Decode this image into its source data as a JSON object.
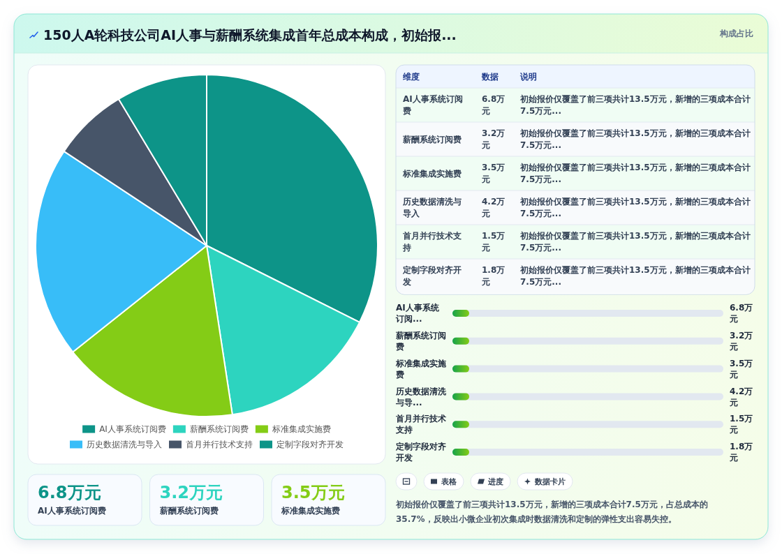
{
  "chart_data": [
    {
      "type": "other",
      "title": "150人A轮科技公司AI人事与薪酬系统集成首年总成本构成，初始报...",
      "subtitle": "构成占比"
    },
    {
      "type": "pie",
      "categories": [
        "AI人事系统订阅费",
        "薪酬系统订阅费",
        "标准集成实施费",
        "历史数据清洗与导入",
        "首月并行技术支持",
        "定制字段对齐开发"
      ],
      "values": [
        32.4,
        15.2,
        16.7,
        20.0,
        7.1,
        8.6
      ],
      "colors": [
        "#0d9488",
        "#2dd4bf",
        "#84cc16",
        "#38bdf8",
        "#475569",
        "#0d9488"
      ],
      "legend": "bottom"
    },
    {
      "type": "other",
      "categories": [
        "AI人事系统订阅费",
        "薪酬系统订阅费",
        "标准集成实施费",
        "历史数据清洗与导入",
        "首月并行技术支持",
        "定制字段对齐开发"
      ],
      "value_labels": [
        "6.8万元",
        "3.2万元",
        "3.5万元",
        "4.2万元",
        "1.5万元",
        "1.8万元"
      ],
      "annotations": [
        "维度",
        "数据",
        "说明",
        "初始报价仅覆盖了前三项共计13.5万元，新增的三项成本合计7.5万元...",
        "初始报价仅覆盖了前三项共计13.5万元，新增的三项成本合计7.5万元...",
        "初始报价仅覆盖了前三项共计13.5万元，新增的三项成本合计7.5万元...",
        "初始报价仅覆盖了前三项共计13.5万元，新增的三项成本合计7.5万元...",
        "初始报价仅覆盖了前三项共计13.5万元，新增的三项成本合计7.5万元...",
        "初始报价仅覆盖了前三项共计13.5万元，新增的三项成本合计7.5万元..."
      ]
    },
    {
      "type": "other",
      "categories": [
        "AI人事系统订阅...",
        "薪酬系统订阅费",
        "标准集成实施费",
        "历史数据清洗与导...",
        "首月并行技术支持",
        "定制字段对齐开发"
      ],
      "value_labels": [
        "6.8万元",
        "3.2万元",
        "3.5万元",
        "4.2万元",
        "1.5万元",
        "1.8万元"
      ]
    },
    {
      "type": "other",
      "categories": [
        "AI人事系统订阅费",
        "薪酬系统订阅费",
        "标准集成实施费"
      ],
      "value_labels": [
        "6.8万元",
        "3.2万元",
        "3.5万元"
      ]
    },
    {
      "type": "other",
      "categories": [
        null,
        "表格",
        "进度",
        "数据卡片"
      ],
      "annotations": [
        "初始报价仅覆盖了前三项共计13.5万元，新增的三项成本合计7.5万元，占总成本的35.7%，反映出小微企业初次集成时数据清洗和定制的弹性支出容易失控。"
      ]
    }
  ]
}
